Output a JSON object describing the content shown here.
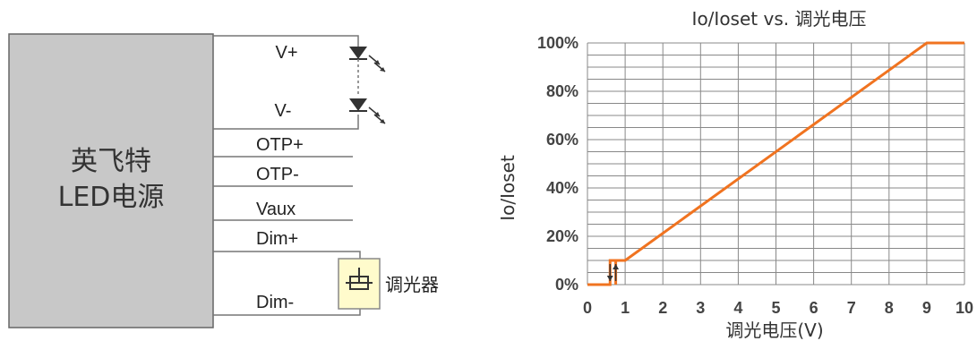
{
  "circuit": {
    "box_label_line1": "英飞特",
    "box_label_line2": "LED电源",
    "terminals": [
      "V+",
      "V-",
      "OTP+",
      "OTP-",
      "Vaux",
      "Dim+",
      "Dim-"
    ],
    "dimmer_label": "调光器",
    "led_icon": "led-diode-icon",
    "dimmer_icon": "potentiometer-icon"
  },
  "chart_data": {
    "type": "line",
    "title": "Io/Ioset vs. 调光电压",
    "xlabel": "调光电压(V)",
    "ylabel": "Io/Ioset",
    "xlim": [
      0,
      10
    ],
    "ylim": [
      0,
      100
    ],
    "x_ticks": [
      "0",
      "1",
      "2",
      "3",
      "4",
      "5",
      "6",
      "7",
      "8",
      "9",
      "10"
    ],
    "y_ticks": [
      "0%",
      "20%",
      "40%",
      "60%",
      "80%",
      "100%"
    ],
    "grid": true,
    "line_color": "#f07320",
    "series": [
      {
        "x": [
          0,
          0.6,
          0.6,
          0.75,
          0.75,
          1,
          9,
          10
        ],
        "y": [
          0,
          0,
          10,
          10,
          0,
          10,
          100,
          100
        ]
      }
    ],
    "hysteresis_arrows": [
      {
        "x": 0.6,
        "direction": "down"
      },
      {
        "x": 0.75,
        "direction": "up"
      }
    ]
  }
}
